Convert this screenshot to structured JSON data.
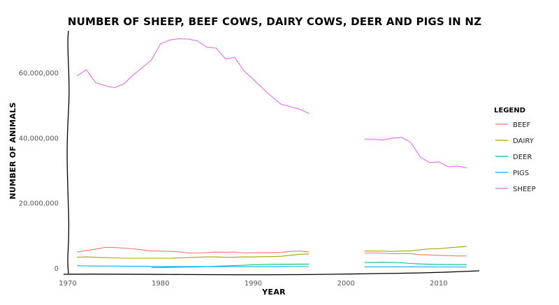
{
  "chart_data": {
    "type": "line",
    "title": "NUMBER OF SHEEP, BEEF COWS, DAIRY COWS, DEER AND PIGS IN NZ",
    "xlabel": "YEAR",
    "ylabel": "NUMBER OF ANIMALS",
    "xlim": [
      1970,
      2014
    ],
    "ylim": [
      0,
      72000000
    ],
    "x_ticks": [
      1970,
      1980,
      1990,
      2000,
      2010
    ],
    "y_ticks": [
      0,
      20000000,
      40000000,
      60000000
    ],
    "y_tick_labels": [
      "0",
      "20,000,000",
      "40,000,000",
      "60,000,000"
    ],
    "grid": false,
    "legend": {
      "title": "LEGEND",
      "position": "right"
    },
    "series": [
      {
        "name": "BEEF",
        "color": "#f8766d",
        "points": [
          [
            1971,
            4900000
          ],
          [
            1972,
            5400000
          ],
          [
            1973,
            5800000
          ],
          [
            1974,
            6300000
          ],
          [
            1975,
            6300000
          ],
          [
            1976,
            6100000
          ],
          [
            1977,
            5900000
          ],
          [
            1978,
            5600000
          ],
          [
            1979,
            5200000
          ],
          [
            1980,
            5200000
          ],
          [
            1981,
            5100000
          ],
          [
            1982,
            5000000
          ],
          [
            1983,
            4600000
          ],
          [
            1984,
            4600000
          ],
          [
            1985,
            4700000
          ],
          [
            1986,
            4900000
          ],
          [
            1987,
            4800000
          ],
          [
            1988,
            4900000
          ],
          [
            1989,
            4600000
          ],
          [
            1990,
            4700000
          ],
          [
            1991,
            4700000
          ],
          [
            1992,
            4700000
          ],
          [
            1993,
            4800000
          ],
          [
            1994,
            5100000
          ],
          [
            1995,
            5200000
          ],
          [
            1996,
            4900000
          ],
          null,
          [
            2002,
            4500000
          ],
          [
            2003,
            4600000
          ],
          [
            2004,
            4500000
          ],
          [
            2005,
            4400000
          ],
          [
            2006,
            4400000
          ],
          [
            2007,
            4400000
          ],
          [
            2008,
            4100000
          ],
          [
            2009,
            4000000
          ],
          [
            2010,
            3900000
          ],
          [
            2011,
            3800000
          ],
          [
            2012,
            3700000
          ],
          [
            2013,
            3700000
          ]
        ]
      },
      {
        "name": "DAIRY",
        "color": "#a3a500",
        "points": [
          [
            1971,
            3300000
          ],
          [
            1972,
            3400000
          ],
          [
            1973,
            3300000
          ],
          [
            1974,
            3200000
          ],
          [
            1975,
            3100000
          ],
          [
            1976,
            3000000
          ],
          [
            1977,
            3000000
          ],
          [
            1978,
            3000000
          ],
          [
            1979,
            3000000
          ],
          [
            1980,
            3000000
          ],
          [
            1981,
            3000000
          ],
          [
            1982,
            3100000
          ],
          [
            1983,
            3200000
          ],
          [
            1984,
            3300000
          ],
          [
            1985,
            3400000
          ],
          [
            1986,
            3400000
          ],
          [
            1987,
            3300000
          ],
          [
            1988,
            3300000
          ],
          [
            1989,
            3400000
          ],
          [
            1990,
            3400000
          ],
          [
            1991,
            3500000
          ],
          [
            1992,
            3500000
          ],
          [
            1993,
            3600000
          ],
          [
            1994,
            3900000
          ],
          [
            1995,
            4200000
          ],
          [
            1996,
            4300000
          ],
          null,
          [
            2002,
            5200000
          ],
          [
            2003,
            5200000
          ],
          [
            2004,
            5200000
          ],
          [
            2005,
            5100000
          ],
          [
            2006,
            5200000
          ],
          [
            2007,
            5300000
          ],
          [
            2008,
            5600000
          ],
          [
            2009,
            5900000
          ],
          [
            2010,
            5900000
          ],
          [
            2011,
            6200000
          ],
          [
            2012,
            6400000
          ],
          [
            2013,
            6600000
          ]
        ]
      },
      {
        "name": "DEER",
        "color": "#00bf7d",
        "points": [
          [
            1979,
            100000
          ],
          [
            1980,
            150000
          ],
          [
            1981,
            200000
          ],
          [
            1982,
            250000
          ],
          [
            1983,
            300000
          ],
          [
            1984,
            350000
          ],
          [
            1985,
            450000
          ],
          [
            1986,
            550000
          ],
          [
            1987,
            650000
          ],
          [
            1988,
            750000
          ],
          [
            1989,
            850000
          ],
          [
            1990,
            1000000
          ],
          [
            1991,
            1100000
          ],
          [
            1992,
            1150000
          ],
          [
            1993,
            1150000
          ],
          [
            1994,
            1150000
          ],
          [
            1995,
            1200000
          ],
          [
            1996,
            1200000
          ],
          null,
          [
            2002,
            1700000
          ],
          [
            2003,
            1700000
          ],
          [
            2004,
            1750000
          ],
          [
            2005,
            1700000
          ],
          [
            2006,
            1600000
          ],
          [
            2007,
            1400000
          ],
          [
            2008,
            1250000
          ],
          [
            2009,
            1150000
          ],
          [
            2010,
            1100000
          ],
          [
            2011,
            1100000
          ],
          [
            2012,
            1050000
          ],
          [
            2013,
            1050000
          ]
        ]
      },
      {
        "name": "PIGS",
        "color": "#00b0f6",
        "points": [
          [
            1971,
            700000
          ],
          [
            1972,
            650000
          ],
          [
            1973,
            600000
          ],
          [
            1974,
            600000
          ],
          [
            1975,
            600000
          ],
          [
            1976,
            550000
          ],
          [
            1977,
            550000
          ],
          [
            1978,
            550000
          ],
          [
            1979,
            500000
          ],
          [
            1980,
            450000
          ],
          [
            1981,
            450000
          ],
          [
            1982,
            450000
          ],
          [
            1983,
            450000
          ],
          [
            1984,
            450000
          ],
          [
            1985,
            450000
          ],
          [
            1986,
            450000
          ],
          [
            1987,
            450000
          ],
          [
            1988,
            450000
          ],
          [
            1989,
            400000
          ],
          [
            1990,
            400000
          ],
          [
            1991,
            400000
          ],
          [
            1992,
            400000
          ],
          [
            1993,
            400000
          ],
          [
            1994,
            420000
          ],
          [
            1995,
            430000
          ],
          [
            1996,
            430000
          ],
          null,
          [
            2002,
            350000
          ],
          [
            2003,
            360000
          ],
          [
            2004,
            370000
          ],
          [
            2005,
            360000
          ],
          [
            2006,
            350000
          ],
          [
            2007,
            380000
          ],
          [
            2008,
            330000
          ],
          [
            2009,
            330000
          ],
          [
            2010,
            330000
          ],
          [
            2011,
            330000
          ],
          [
            2012,
            320000
          ],
          [
            2013,
            310000
          ]
        ]
      },
      {
        "name": "SHEEP",
        "color": "#e76bf3",
        "points": [
          [
            1971,
            59000000
          ],
          [
            1972,
            60900000
          ],
          [
            1973,
            56900000
          ],
          [
            1974,
            56000000
          ],
          [
            1975,
            55400000
          ],
          [
            1976,
            56400000
          ],
          [
            1977,
            59100000
          ],
          [
            1978,
            61500000
          ],
          [
            1979,
            63800000
          ],
          [
            1980,
            68800000
          ],
          [
            1981,
            70000000
          ],
          [
            1982,
            70400000
          ],
          [
            1983,
            70300000
          ],
          [
            1984,
            69700000
          ],
          [
            1985,
            67800000
          ],
          [
            1986,
            67500000
          ],
          [
            1987,
            64200000
          ],
          [
            1988,
            64600000
          ],
          [
            1989,
            60500000
          ],
          [
            1990,
            57900000
          ],
          [
            1991,
            55200000
          ],
          [
            1992,
            52600000
          ],
          [
            1993,
            50300000
          ],
          [
            1994,
            49500000
          ],
          [
            1995,
            48800000
          ],
          [
            1996,
            47400000
          ],
          null,
          [
            2002,
            39600000
          ],
          [
            2003,
            39500000
          ],
          [
            2004,
            39300000
          ],
          [
            2005,
            39900000
          ],
          [
            2006,
            40100000
          ],
          [
            2007,
            38500000
          ],
          [
            2008,
            34100000
          ],
          [
            2009,
            32400000
          ],
          [
            2010,
            32600000
          ],
          [
            2011,
            31100000
          ],
          [
            2012,
            31300000
          ],
          [
            2013,
            30800000
          ]
        ]
      }
    ]
  }
}
